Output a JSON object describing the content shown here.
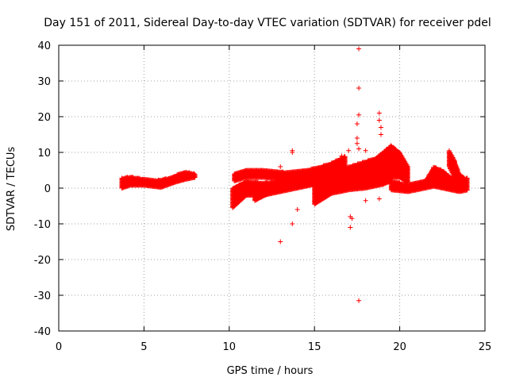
{
  "chart_data": {
    "type": "scatter",
    "title": "Day 151 of 2011, Sidereal Day-to-day VTEC variation (SDTVAR) for receiver pdel",
    "xlabel": "GPS time / hours",
    "ylabel": "SDTVAR / TECUs",
    "xlim": [
      0,
      25
    ],
    "ylim": [
      -40,
      40
    ],
    "xticks": [
      0,
      5,
      10,
      15,
      20,
      25
    ],
    "yticks": [
      -40,
      -30,
      -20,
      -10,
      0,
      10,
      20,
      30,
      40
    ],
    "grid": true,
    "marker": "+",
    "color": "#ff0000",
    "bands": [
      {
        "name": "early-arc",
        "x": [
          3.7,
          4.2,
          5.0,
          6.0,
          6.8,
          7.4,
          8.0
        ],
        "lower": [
          0.0,
          0.8,
          0.8,
          0.2,
          1.6,
          2.4,
          3.0
        ],
        "upper": [
          2.8,
          3.2,
          2.6,
          2.2,
          3.5,
          4.6,
          4.0
        ]
      },
      {
        "name": "upper-track",
        "x": [
          10.3,
          11.0,
          12.0,
          13.0,
          14.0,
          15.0,
          16.0,
          16.8
        ],
        "lower": [
          2.0,
          3.0,
          3.0,
          2.5,
          3.0,
          3.5,
          4.5,
          5.5
        ],
        "upper": [
          4.0,
          5.2,
          5.0,
          4.5,
          4.8,
          5.5,
          7.0,
          9.0
        ]
      },
      {
        "name": "rising-track-a",
        "x": [
          10.2,
          11.0,
          12.0,
          13.0,
          14.0,
          15.0
        ],
        "lower": [
          -5.5,
          -2.0,
          -2.0,
          -1.0,
          0.0,
          1.0
        ],
        "upper": [
          0.0,
          2.0,
          1.5,
          2.0,
          2.5,
          3.0
        ]
      },
      {
        "name": "rising-track-b",
        "x": [
          11.5,
          12.5,
          13.5,
          14.5,
          15.5,
          16.3
        ],
        "lower": [
          -3.5,
          -1.0,
          0.0,
          1.0,
          1.5,
          2.5
        ],
        "upper": [
          -1.0,
          1.5,
          2.5,
          3.5,
          4.0,
          5.0
        ]
      },
      {
        "name": "mid-cluster",
        "x": [
          15.0,
          16.0,
          17.0,
          18.0,
          19.0,
          19.5
        ],
        "lower": [
          -4.5,
          -1.5,
          -0.5,
          0.0,
          1.0,
          2.0
        ],
        "upper": [
          2.0,
          4.0,
          6.0,
          7.5,
          9.0,
          10.5
        ]
      },
      {
        "name": "peak-cluster",
        "x": [
          17.5,
          18.5,
          19.0,
          19.5,
          20.0,
          20.5
        ],
        "lower": [
          0.5,
          1.5,
          2.0,
          3.0,
          3.0,
          1.5
        ],
        "upper": [
          5.0,
          8.0,
          10.0,
          12.0,
          10.0,
          6.0
        ]
      },
      {
        "name": "late-track",
        "x": [
          19.5,
          20.5,
          21.5,
          22.0,
          22.5,
          23.0,
          23.5,
          24.0
        ],
        "lower": [
          -0.5,
          -1.0,
          0.0,
          0.5,
          0.0,
          -0.5,
          -1.0,
          -0.5
        ],
        "upper": [
          2.0,
          1.0,
          2.0,
          6.0,
          5.0,
          3.0,
          2.0,
          3.0
        ]
      },
      {
        "name": "late-spike",
        "x": [
          22.9,
          23.2,
          23.5,
          23.8
        ],
        "lower": [
          6.0,
          3.0,
          1.0,
          0.0
        ],
        "upper": [
          10.5,
          8.0,
          4.0,
          3.0
        ]
      }
    ],
    "outliers": {
      "x": [
        17.6,
        17.6,
        17.6,
        17.5,
        17.5,
        18.8,
        18.8,
        18.9,
        18.9,
        13.0,
        13.7,
        13.7,
        13.7,
        14.0,
        13.0,
        17.1,
        17.2,
        17.1,
        17.6,
        16.6,
        17.0,
        18.0,
        18.0,
        18.8,
        17.6,
        17.5,
        16.0,
        15.5
      ],
      "y": [
        39,
        28,
        20.5,
        18,
        14,
        21,
        19,
        17,
        15,
        6,
        10.5,
        10,
        -10,
        -6,
        -15,
        -8,
        -8.5,
        -11,
        -31.5,
        9,
        10.5,
        10.5,
        -3.5,
        -3,
        11,
        12.5,
        7,
        6
      ]
    }
  }
}
